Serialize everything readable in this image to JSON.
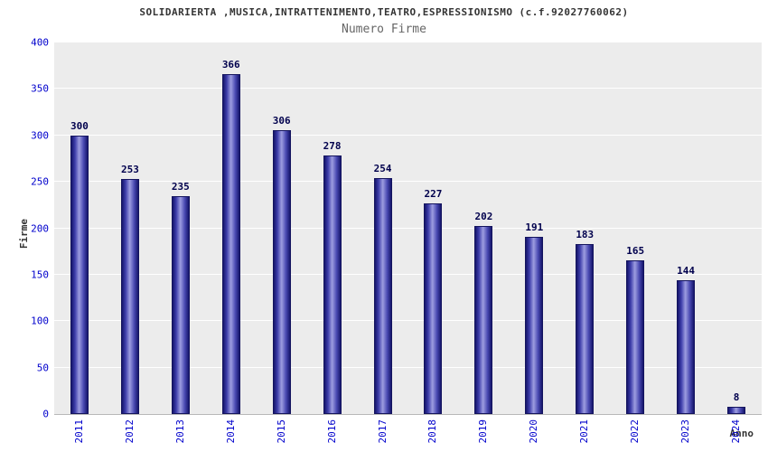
{
  "title": "SOLIDARIERTA ,MUSICA,INTRATTENIMENTO,TEATRO,ESPRESSIONISMO (c.f.92027760062)",
  "subtitle": "Numero Firme",
  "colors": {
    "plot_background": "#ececec",
    "gridline": "#ffffff",
    "bar_edge": "#15156b",
    "bar_center": "#9d9de0",
    "tick_label": "#0000cc",
    "value_label": "#00004d",
    "axis_title": "#333333"
  },
  "chart_data": {
    "type": "bar",
    "categories": [
      "2011",
      "2012",
      "2013",
      "2014",
      "2015",
      "2016",
      "2017",
      "2018",
      "2019",
      "2020",
      "2021",
      "2022",
      "2023",
      "2024"
    ],
    "values": [
      300,
      253,
      235,
      366,
      306,
      278,
      254,
      227,
      202,
      191,
      183,
      165,
      144,
      8
    ],
    "title": "SOLIDARIERTA ,MUSICA,INTRATTENIMENTO,TEATRO,ESPRESSIONISMO (c.f.92027760062)",
    "subtitle": "Numero Firme",
    "xlabel": "Anno",
    "ylabel": "Firme",
    "ylim": [
      0,
      400
    ],
    "ytick_step": 50,
    "grid": true,
    "legend": false
  }
}
